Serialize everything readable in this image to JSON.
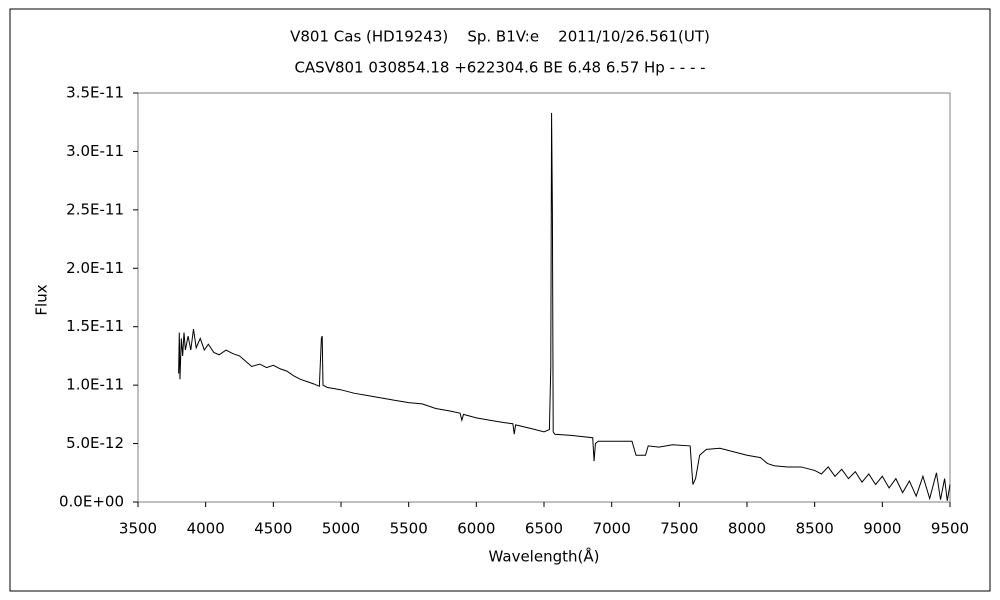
{
  "chart_data": {
    "type": "line",
    "title": "V801 Cas (HD19243)    Sp. B1V:e    2011/10/26.561(UT)",
    "subtitle": "CASV801 030854.18 +622304.6 BE 6.48 6.57 Hp - - - -",
    "x_label": "Wavelength(Å)",
    "y_label": "Flux",
    "x": [
      3800,
      3805,
      3810,
      3820,
      3830,
      3840,
      3850,
      3870,
      3890,
      3910,
      3930,
      3960,
      3990,
      4020,
      4060,
      4100,
      4150,
      4200,
      4250,
      4300,
      4340,
      4400,
      4450,
      4500,
      4550,
      4600,
      4650,
      4700,
      4750,
      4800,
      4840,
      4855,
      4861,
      4867,
      4900,
      4950,
      5000,
      5100,
      5200,
      5300,
      5400,
      5500,
      5600,
      5700,
      5800,
      5880,
      5893,
      5905,
      6000,
      6100,
      6200,
      6270,
      6280,
      6290,
      6400,
      6500,
      6540,
      6550,
      6556,
      6562,
      6568,
      6580,
      6700,
      6860,
      6870,
      6880,
      6900,
      7000,
      7150,
      7180,
      7250,
      7270,
      7350,
      7450,
      7580,
      7600,
      7620,
      7650,
      7700,
      7800,
      7900,
      8000,
      8100,
      8150,
      8200,
      8300,
      8400,
      8500,
      8550,
      8600,
      8650,
      8700,
      8750,
      8800,
      8850,
      8900,
      8950,
      9000,
      9050,
      9100,
      9150,
      9200,
      9250,
      9300,
      9350,
      9400,
      9430,
      9460,
      9480,
      9500
    ],
    "series": [
      {
        "color": "#000000",
        "values": [
          1.1e-11,
          1.45e-11,
          1.05e-11,
          1.4e-11,
          1.25e-11,
          1.45e-11,
          1.3e-11,
          1.42e-11,
          1.3e-11,
          1.48e-11,
          1.32e-11,
          1.4e-11,
          1.3e-11,
          1.35e-11,
          1.28e-11,
          1.26e-11,
          1.3e-11,
          1.27e-11,
          1.25e-11,
          1.2e-11,
          1.16e-11,
          1.18e-11,
          1.15e-11,
          1.17e-11,
          1.14e-11,
          1.12e-11,
          1.08e-11,
          1.05e-11,
          1.03e-11,
          1.01e-11,
          9.9e-12,
          1.4e-11,
          1.42e-11,
          1e-11,
          9.8e-12,
          9.7e-12,
          9.6e-12,
          9.3e-12,
          9.1e-12,
          8.9e-12,
          8.7e-12,
          8.5e-12,
          8.4e-12,
          8e-12,
          7.8e-12,
          7.6e-12,
          7e-12,
          7.5e-12,
          7.2e-12,
          7e-12,
          6.8e-12,
          6.7e-12,
          5.8e-12,
          6.6e-12,
          6.3e-12,
          6e-12,
          6.2e-12,
          1.15e-11,
          3.33e-11,
          2.5e-11,
          6e-12,
          5.8e-12,
          5.7e-12,
          5.5e-12,
          3.5e-12,
          5e-12,
          5.2e-12,
          5.2e-12,
          5.2e-12,
          4e-12,
          4e-12,
          4.8e-12,
          4.7e-12,
          4.9e-12,
          4.8e-12,
          1.5e-12,
          2e-12,
          4e-12,
          4.5e-12,
          4.6e-12,
          4.3e-12,
          4e-12,
          3.8e-12,
          3.3e-12,
          3.1e-12,
          3e-12,
          3e-12,
          2.7e-12,
          2.4e-12,
          3e-12,
          2.2e-12,
          2.8e-12,
          2e-12,
          2.6e-12,
          1.7e-12,
          2.4e-12,
          1.5e-12,
          2.2e-12,
          1.2e-12,
          2e-12,
          8e-13,
          1.8e-12,
          5e-13,
          2.2e-12,
          3e-13,
          2.5e-12,
          2e-13,
          2e-12,
          1e-13,
          1.5e-12
        ]
      }
    ],
    "xlim": [
      3500,
      9500
    ],
    "xticks": [
      3500,
      4000,
      4500,
      5000,
      5500,
      6000,
      6500,
      7000,
      7500,
      8000,
      8500,
      9000,
      9500
    ],
    "ylim": [
      0,
      3.5e-11
    ],
    "yticks": [
      {
        "value": 0,
        "label": "0.0E+00"
      },
      {
        "value": 5e-12,
        "label": "5.0E-12"
      },
      {
        "value": 1e-11,
        "label": "1.0E-11"
      },
      {
        "value": 1.5e-11,
        "label": "1.5E-11"
      },
      {
        "value": 2e-11,
        "label": "2.0E-11"
      },
      {
        "value": 2.5e-11,
        "label": "2.5E-11"
      },
      {
        "value": 3e-11,
        "label": "3.0E-11"
      },
      {
        "value": 3.5e-11,
        "label": "3.5E-11"
      }
    ]
  }
}
